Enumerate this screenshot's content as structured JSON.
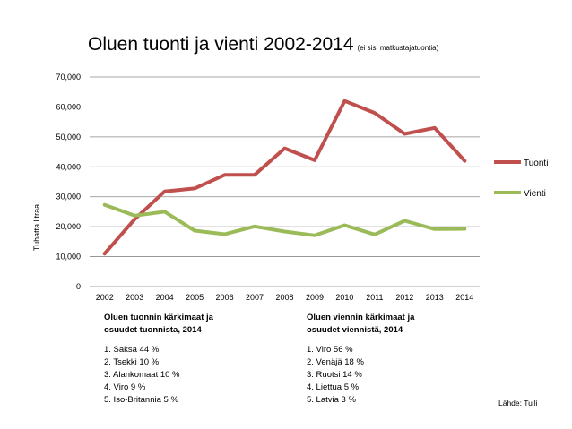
{
  "title": "Oluen tuonti ja vienti 2002-2014",
  "subtitle": "(ei sis. matkustajatuontia)",
  "source": "Lähde: Tulli",
  "colors": {
    "tuonti": "#c0504d",
    "vienti": "#9bbb59",
    "grid": "#888888"
  },
  "chart_data": {
    "type": "line",
    "title": "Oluen tuonti ja vienti 2002-2014",
    "xlabel": "",
    "ylabel": "Tuhatta litraa",
    "categories": [
      "2002",
      "2003",
      "2004",
      "2005",
      "2006",
      "2007",
      "2008",
      "2009",
      "2010",
      "2011",
      "2012",
      "2013",
      "2014"
    ],
    "ylim": [
      0,
      70000
    ],
    "yticks": [
      0,
      10000,
      20000,
      30000,
      40000,
      50000,
      60000,
      70000
    ],
    "ytick_labels": [
      "0",
      "10,000",
      "20,000",
      "30,000",
      "40,000",
      "50,000",
      "60,000",
      "70,000"
    ],
    "grid": true,
    "legend": "right",
    "series": [
      {
        "name": "Tuonti",
        "values": [
          11000,
          22500,
          31800,
          32800,
          37300,
          37300,
          46200,
          42200,
          62000,
          58000,
          51000,
          53000,
          42000
        ]
      },
      {
        "name": "Vienti",
        "values": [
          27300,
          23700,
          25000,
          18700,
          17500,
          20100,
          18400,
          17100,
          20500,
          17400,
          22000,
          19200,
          19300
        ]
      }
    ]
  },
  "imports": {
    "heading_1": "Oluen tuonnin kärkimaat ja",
    "heading_2": "osuudet tuonnista, 2014",
    "items": [
      "1. Saksa 44 %",
      "2. Tsekki 10 %",
      "3. Alankomaat 10 %",
      "4. Viro 9 %",
      "5. Iso-Britannia 5 %"
    ]
  },
  "exports": {
    "heading_1": "Oluen viennin kärkimaat ja",
    "heading_2": "osuudet viennistä, 2014",
    "items": [
      "1. Viro 56 %",
      "2. Venäjä 18 %",
      "3. Ruotsi 14 %",
      "4. Liettua 5 %",
      "5. Latvia 3 %"
    ]
  }
}
